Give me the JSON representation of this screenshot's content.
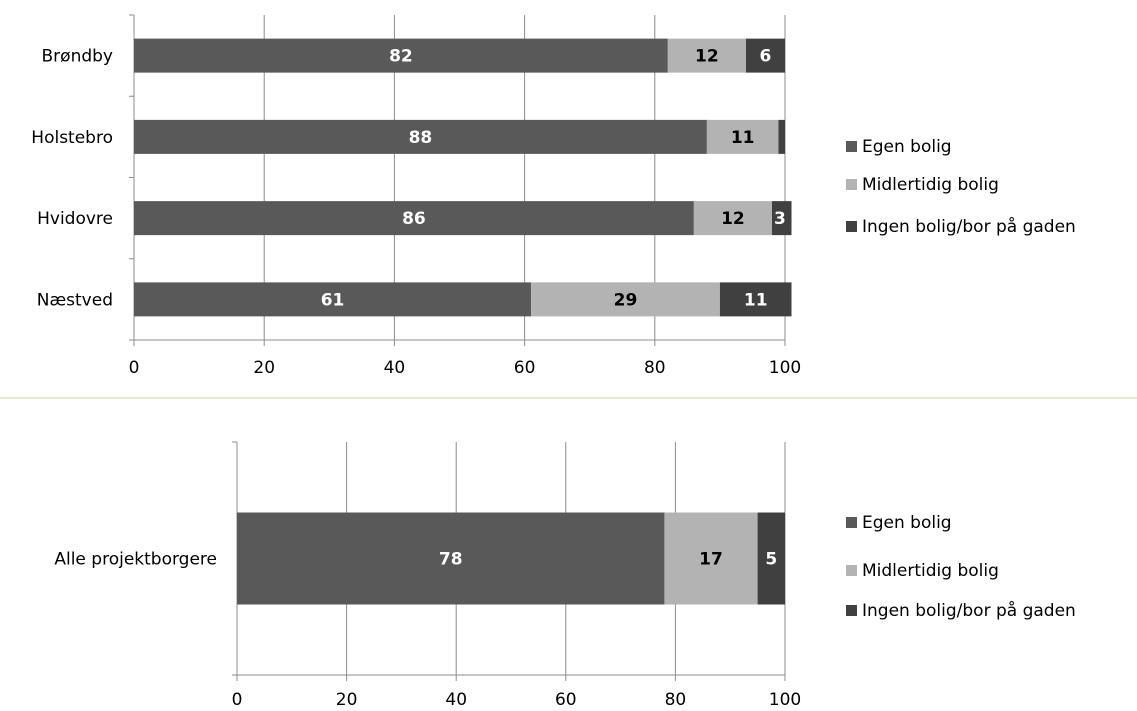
{
  "colors": {
    "egen": "#595959",
    "midlertidig": "#b3b3b3",
    "ingen": "#404040",
    "grid": "#8c8c8c",
    "axis": "#8c8c8c",
    "divider": "#c8cf98"
  },
  "chart_data": [
    {
      "type": "bar",
      "orientation": "horizontal",
      "stacked": true,
      "categories": [
        "Brøndby",
        "Holstebro",
        "Hvidovre",
        "Næstved"
      ],
      "series": [
        {
          "name": "Egen bolig",
          "values": [
            82,
            88,
            86,
            61
          ],
          "labels": [
            "82",
            "88",
            "86",
            "61"
          ]
        },
        {
          "name": "Midlertidig bolig",
          "values": [
            12,
            11,
            12,
            29
          ],
          "labels": [
            "12",
            "11",
            "12",
            "29"
          ]
        },
        {
          "name": "Ingen bolig/bor på gaden",
          "values": [
            6,
            1,
            3,
            11
          ],
          "labels": [
            "6",
            "",
            "3",
            "11"
          ]
        }
      ],
      "xlim": [
        0,
        100
      ],
      "xticks": [
        "0",
        "20",
        "40",
        "60",
        "80",
        "100"
      ],
      "grid": true,
      "legend": "right",
      "legend_items": [
        "Egen bolig",
        "Midlertidig bolig",
        "Ingen bolig/bor på gaden"
      ]
    },
    {
      "type": "bar",
      "orientation": "horizontal",
      "stacked": true,
      "categories": [
        "Alle projektborgere"
      ],
      "series": [
        {
          "name": "Egen bolig",
          "values": [
            78
          ],
          "labels": [
            "78"
          ]
        },
        {
          "name": "Midlertidig bolig",
          "values": [
            17
          ],
          "labels": [
            "17"
          ]
        },
        {
          "name": "Ingen bolig/bor på gaden",
          "values": [
            5
          ],
          "labels": [
            "5"
          ]
        }
      ],
      "xlim": [
        0,
        100
      ],
      "xticks": [
        "0",
        "20",
        "40",
        "60",
        "80",
        "100"
      ],
      "grid": true,
      "legend": "right",
      "legend_items": [
        "Egen bolig",
        "Midlertidig bolig",
        "Ingen bolig/bor på gaden"
      ]
    }
  ]
}
